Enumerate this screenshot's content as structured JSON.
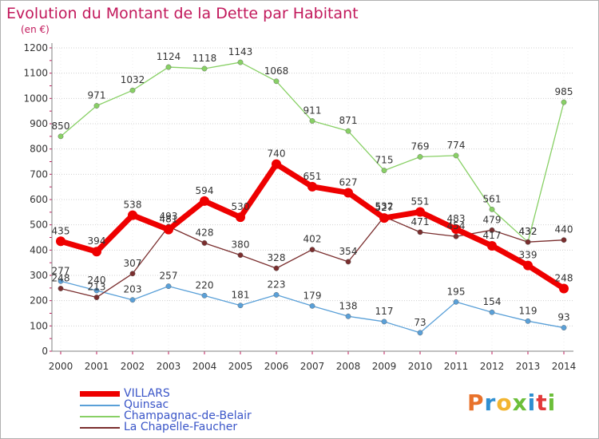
{
  "header": {
    "title": "Evolution du Montant de la Dette par Habitant",
    "subtitle": "(en €)"
  },
  "logo": {
    "letters": [
      "P",
      "r",
      "o",
      "x",
      "i",
      "t",
      "i"
    ]
  },
  "colors": {
    "title": "#c2185b",
    "axis": "#808080",
    "grid": "#d0d0d0"
  },
  "chart_data": {
    "type": "line",
    "title": "Evolution du Montant de la Dette par Habitant",
    "ylabel": "(en €)",
    "xlabel": "",
    "ylim": [
      0,
      1200
    ],
    "yticks": [
      0,
      100,
      200,
      300,
      400,
      500,
      600,
      700,
      800,
      900,
      1000,
      1100,
      1200
    ],
    "x": [
      "2000",
      "2001",
      "2002",
      "2003",
      "2004",
      "2005",
      "2006",
      "2007",
      "2008",
      "2009",
      "2010",
      "2011",
      "2012",
      "2013",
      "2014"
    ],
    "grid": "horizontal",
    "legend_position": "bottom-left",
    "series": [
      {
        "name": "VILLARS",
        "color": "#ee0000",
        "values": [
          435,
          394,
          538,
          481,
          594,
          530,
          740,
          651,
          627,
          527,
          551,
          483,
          417,
          339,
          248
        ]
      },
      {
        "name": "Quinsac",
        "color": "#5aa0d8",
        "values": [
          277,
          240,
          203,
          257,
          220,
          181,
          223,
          179,
          138,
          117,
          73,
          195,
          154,
          119,
          93
        ]
      },
      {
        "name": "Champagnac-de-Belair",
        "color": "#88d065",
        "values": [
          850,
          971,
          1032,
          1124,
          1118,
          1143,
          1068,
          911,
          871,
          715,
          769,
          774,
          561,
          432,
          985
        ]
      },
      {
        "name": "La Chapelle-Faucher",
        "color": "#7a2e2e",
        "values": [
          248,
          213,
          307,
          493,
          428,
          380,
          328,
          402,
          354,
          532,
          471,
          454,
          479,
          432,
          440
        ]
      }
    ]
  }
}
